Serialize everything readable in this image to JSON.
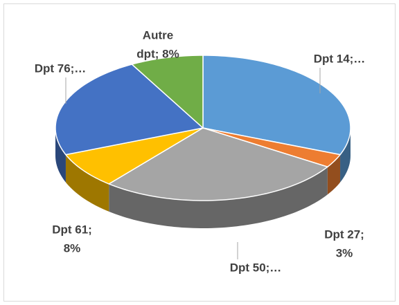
{
  "chart_data": {
    "type": "pie3d",
    "categories": [
      "Dpt 14",
      "Dpt 27",
      "Dpt 50",
      "Dpt 61",
      "Dpt 76",
      "Autre dpt"
    ],
    "values": [
      31,
      3,
      27,
      8,
      23,
      8
    ],
    "value_labels": [
      [
        "Dpt 14;…"
      ],
      [
        "Dpt 27;",
        "3%"
      ],
      [
        "Dpt 50;…"
      ],
      [
        "Dpt 61;",
        "8%"
      ],
      [
        "Dpt 76;…"
      ],
      [
        "Autre",
        "dpt; 8%"
      ]
    ],
    "colors": [
      "#5b9bd5",
      "#ed7d31",
      "#a5a5a5",
      "#ffc000",
      "#4472c4",
      "#70ad47"
    ]
  }
}
